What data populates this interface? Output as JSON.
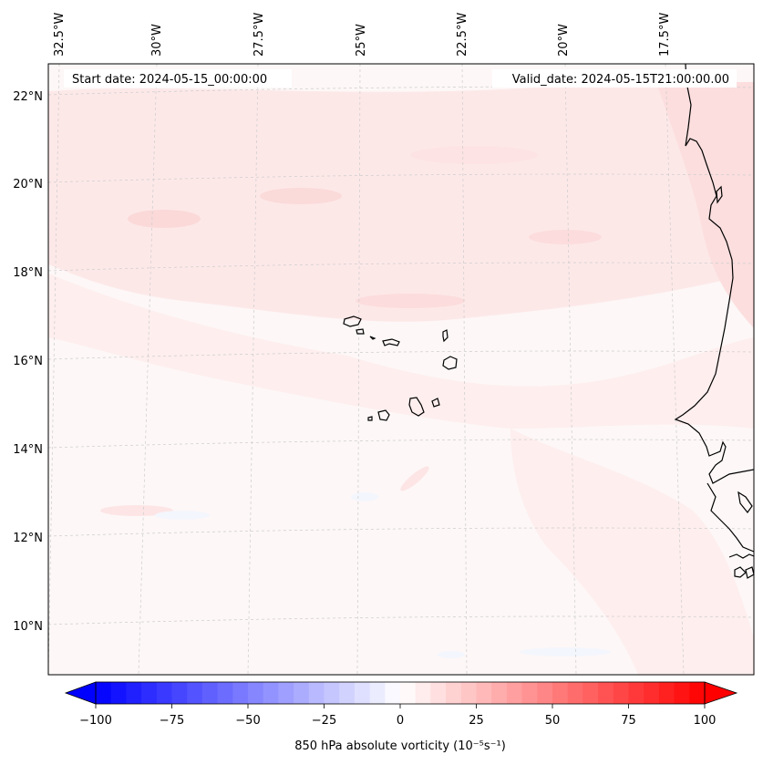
{
  "header": {
    "start_date": "Start date: 2024-05-15_00:00:00",
    "valid_date": "Valid_date: 2024-05-15T21:00:00.00"
  },
  "lon_labels": [
    "32.5°W",
    "30°W",
    "27.5°W",
    "25°W",
    "22.5°W",
    "20°W",
    "17.5°W"
  ],
  "lat_labels": [
    "22°N",
    "20°N",
    "18°N",
    "16°N",
    "14°N",
    "12°N",
    "10°N"
  ],
  "colorbar": {
    "ticks": [
      "−100",
      "−75",
      "−50",
      "−25",
      "0",
      "25",
      "50",
      "75",
      "100"
    ],
    "label": "850 hPa absolute vorticity (10⁻⁵s⁻¹)",
    "colors": {
      "min": "#0000ff",
      "mid": "#ffffff",
      "max": "#ff0000"
    }
  },
  "map": {
    "background_field": "#fdf6f6",
    "coastline_color": "#000000",
    "gridline_color": "#cccccc"
  }
}
